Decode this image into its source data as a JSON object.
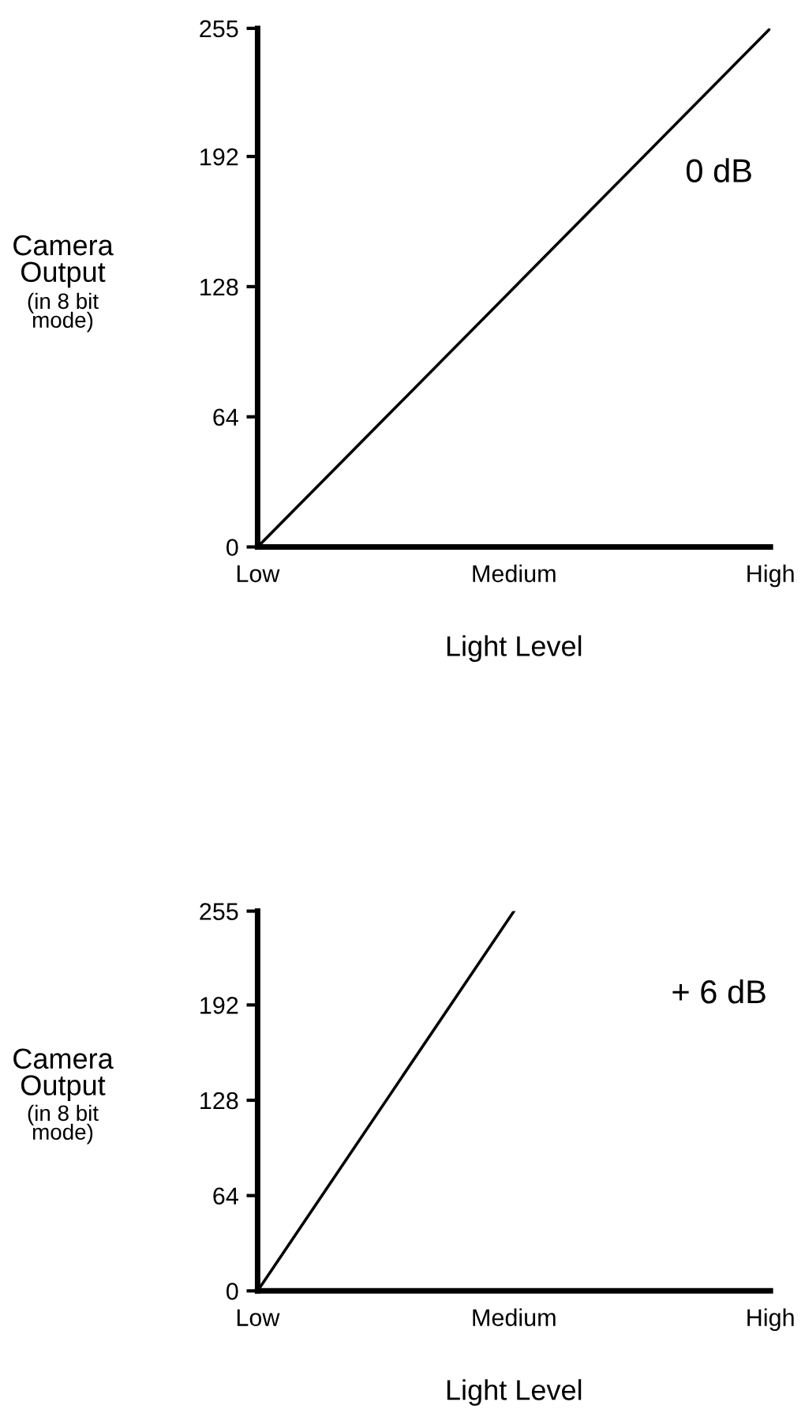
{
  "chart_data": [
    {
      "type": "line",
      "categories": [
        "Low",
        "Medium",
        "High"
      ],
      "values": [
        0,
        127.5,
        255
      ],
      "color": "#000000",
      "ylim": [
        0,
        255
      ],
      "yticks": [
        0,
        64,
        128,
        192,
        255
      ],
      "ylabel": "Camera Output",
      "xlabel": "Light Level",
      "annotations": [
        "0 dB",
        "(in 8 bit mode)"
      ],
      "grid": false,
      "legend": false
    },
    {
      "type": "line",
      "categories": [
        "Low",
        "Medium",
        "High"
      ],
      "values": [
        0,
        255,
        null
      ],
      "color": "#000000",
      "ylim": [
        0,
        255
      ],
      "yticks": [
        0,
        64,
        128,
        192,
        255
      ],
      "ylabel": "Camera Output",
      "xlabel": "Light Level",
      "annotations": [
        "+ 6 dB",
        "(in 8 bit mode)"
      ],
      "grid": false,
      "legend": false
    }
  ]
}
